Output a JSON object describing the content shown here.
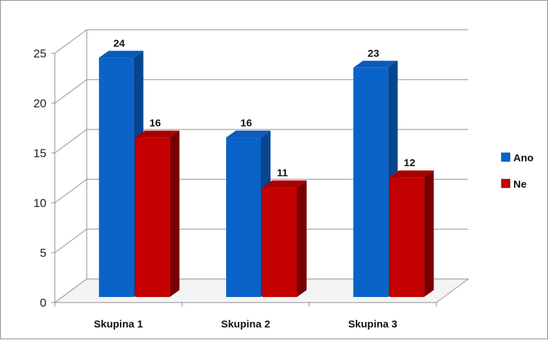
{
  "chart_data": {
    "type": "bar",
    "categories": [
      "Skupina 1",
      "Skupina 2",
      "Skupina 3"
    ],
    "series": [
      {
        "name": "Ano",
        "values": [
          24,
          16,
          23
        ]
      },
      {
        "name": "Ne",
        "values": [
          16,
          11,
          12
        ]
      }
    ],
    "colors": {
      "Ano": {
        "front": "#0a63c9",
        "side": "#07468f",
        "top": "#0b5bb8"
      },
      "Ne": {
        "front": "#c40000",
        "side": "#7a0000",
        "top": "#a80000"
      }
    },
    "ylim": [
      0,
      25
    ],
    "yticks": [
      0,
      5,
      10,
      15,
      20,
      25
    ],
    "grid": true,
    "legend": "right",
    "data_labels": true,
    "style": "3d-column"
  }
}
